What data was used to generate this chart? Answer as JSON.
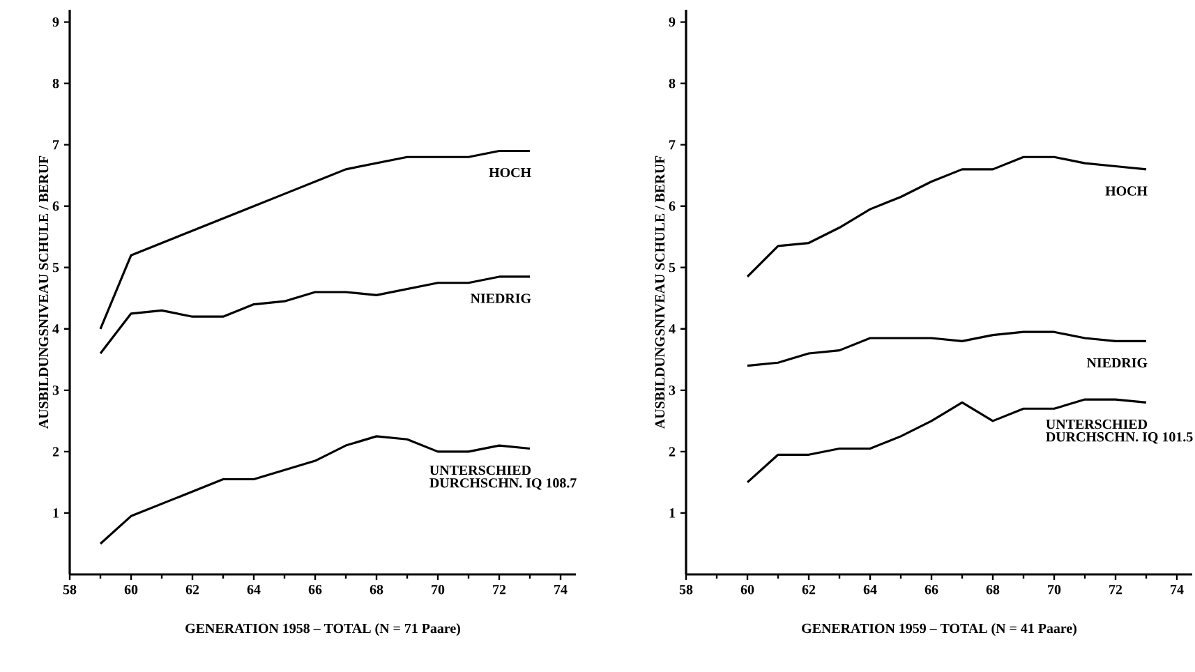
{
  "chart_data": [
    {
      "type": "line",
      "xlabel": "GENERATION 1958 – TOTAL (N = 71 Paare)",
      "ylabel": "AUSBILDUNGSNIVEAU SCHULE / BERUF",
      "x": [
        59,
        60,
        61,
        62,
        63,
        64,
        65,
        66,
        67,
        68,
        69,
        70,
        71,
        72,
        73
      ],
      "series": [
        {
          "name": "HOCH",
          "color": "#000000",
          "values": [
            4.0,
            5.2,
            5.4,
            5.6,
            5.8,
            6.0,
            6.2,
            6.4,
            6.6,
            6.7,
            6.8,
            6.8,
            6.8,
            6.9,
            6.9
          ]
        },
        {
          "name": "NIEDRIG",
          "color": "#000000",
          "values": [
            3.6,
            4.25,
            4.3,
            4.2,
            4.2,
            4.4,
            4.45,
            4.6,
            4.6,
            4.55,
            4.65,
            4.75,
            4.75,
            4.85,
            4.85
          ]
        },
        {
          "name": "UNTERSCHIED",
          "color": "#000000",
          "values": [
            0.5,
            0.95,
            1.15,
            1.35,
            1.55,
            1.55,
            1.7,
            1.85,
            2.1,
            2.25,
            2.2,
            2.0,
            2.0,
            2.1,
            2.05
          ]
        }
      ],
      "annotations": [
        "DURCHSCHN. IQ 108.7"
      ],
      "xlim": [
        58,
        74.5
      ],
      "xticks": [
        58,
        60,
        62,
        64,
        66,
        68,
        70,
        72,
        74
      ],
      "ylim": [
        0,
        9.2
      ],
      "yticks": [
        1,
        2,
        3,
        4,
        5,
        6,
        7,
        8,
        9
      ]
    },
    {
      "type": "line",
      "xlabel": "GENERATION 1959 – TOTAL (N = 41 Paare)",
      "ylabel": "AUSBILDUNGSNIVEAU SCHULE / BERUF",
      "x": [
        60,
        61,
        62,
        63,
        64,
        65,
        66,
        67,
        68,
        69,
        70,
        71,
        72,
        73
      ],
      "series": [
        {
          "name": "HOCH",
          "color": "#000000",
          "values": [
            4.85,
            5.35,
            5.4,
            5.65,
            5.95,
            6.15,
            6.4,
            6.6,
            6.6,
            6.8,
            6.8,
            6.7,
            6.65,
            6.6
          ]
        },
        {
          "name": "NIEDRIG",
          "color": "#000000",
          "values": [
            3.4,
            3.45,
            3.6,
            3.65,
            3.85,
            3.85,
            3.85,
            3.8,
            3.9,
            3.95,
            3.95,
            3.85,
            3.8,
            3.8
          ]
        },
        {
          "name": "UNTERSCHIED",
          "color": "#000000",
          "values": [
            1.5,
            1.95,
            1.95,
            2.05,
            2.05,
            2.25,
            2.5,
            2.8,
            2.5,
            2.7,
            2.7,
            2.85,
            2.85,
            2.8
          ]
        }
      ],
      "annotations": [
        "DURCHSCHN. IQ 101.5"
      ],
      "xlim": [
        58,
        74.5
      ],
      "xticks": [
        58,
        60,
        62,
        64,
        66,
        68,
        70,
        72,
        74
      ],
      "ylim": [
        0,
        9.2
      ],
      "yticks": [
        1,
        2,
        3,
        4,
        5,
        6,
        7,
        8,
        9
      ]
    }
  ]
}
